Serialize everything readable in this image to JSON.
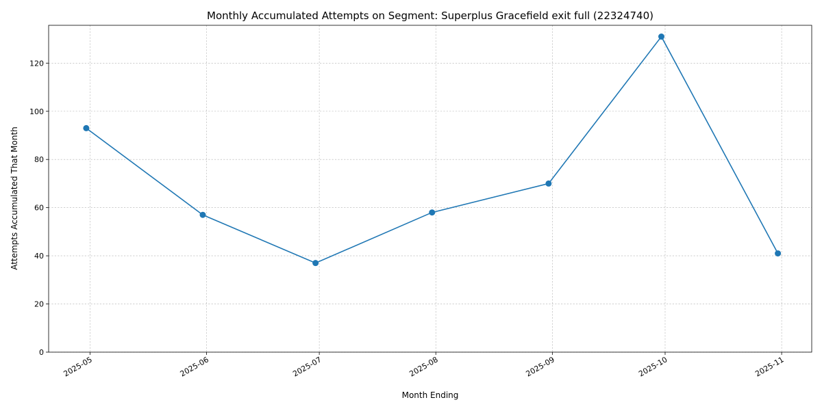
{
  "chart_data": {
    "type": "line",
    "title": "Monthly Accumulated Attempts on Segment: Superplus Gracefield exit full (22324740)",
    "xlabel": "Month Ending",
    "ylabel": "Attempts Accumulated That Month",
    "x": [
      "2025-04-30",
      "2025-05-31",
      "2025-06-30",
      "2025-07-31",
      "2025-08-31",
      "2025-09-30",
      "2025-10-31"
    ],
    "series": [
      {
        "values": [
          93,
          57,
          37,
          58,
          70,
          131,
          41
        ],
        "color": "#1f77b4",
        "marker": "circle"
      }
    ],
    "x_ticks": [
      "2025-05",
      "2025-06",
      "2025-07",
      "2025-08",
      "2025-09",
      "2025-10",
      "2025-11"
    ],
    "x_tick_dates": [
      "2025-05-01",
      "2025-06-01",
      "2025-07-01",
      "2025-08-01",
      "2025-09-01",
      "2025-10-01",
      "2025-11-01"
    ],
    "y_ticks": [
      0,
      20,
      40,
      60,
      80,
      100,
      120
    ],
    "ylim": [
      0,
      135.7
    ],
    "xlim": [
      "2025-04-20",
      "2025-11-09"
    ],
    "grid": true,
    "grid_style": "dashed",
    "legend": "none"
  }
}
